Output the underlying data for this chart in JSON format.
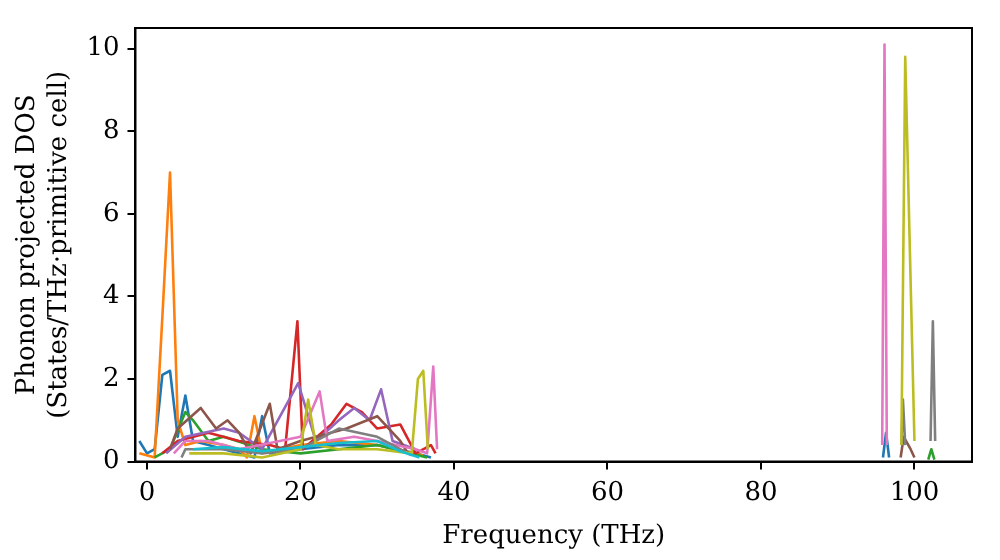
{
  "chart_data": {
    "type": "line",
    "xlabel": "Frequency (THz)",
    "ylabel": "Phonon projected DOS\n(States/THz·primitive cell)",
    "xlim": [
      -1.5,
      107.5
    ],
    "xticks": [
      0,
      20,
      40,
      60,
      80,
      100
    ],
    "ylim": [
      0,
      10.5
    ],
    "yticks": [
      0,
      2,
      4,
      6,
      8,
      10
    ],
    "grid": false,
    "legend": false,
    "series": [
      {
        "color": "#1f77b4",
        "x": [
          -1,
          0,
          1,
          2,
          3,
          4,
          5,
          6,
          8,
          10,
          14,
          15,
          16,
          20,
          25,
          30,
          35,
          37
        ],
        "values": [
          0.5,
          0.2,
          0.3,
          2.1,
          2.2,
          0.6,
          1.6,
          0.5,
          0.4,
          0.3,
          0.1,
          1.1,
          0.2,
          0.3,
          0.4,
          0.4,
          0.2,
          0.1
        ]
      },
      {
        "color": "#ff7f0e",
        "x": [
          -1,
          1,
          2,
          3,
          4,
          5,
          7,
          10,
          12,
          13,
          14,
          15,
          20,
          25,
          30,
          36
        ],
        "values": [
          0.2,
          0.1,
          3.5,
          7.0,
          1.0,
          0.4,
          0.5,
          0.4,
          0.3,
          0.1,
          1.1,
          0.2,
          0.4,
          0.5,
          0.4,
          0.15
        ]
      },
      {
        "color": "#2ca02c",
        "x": [
          1,
          3,
          5,
          6,
          8,
          10,
          15,
          20,
          25,
          30,
          36.5
        ],
        "values": [
          0.1,
          0.3,
          1.2,
          1.0,
          0.5,
          0.6,
          0.3,
          0.2,
          0.3,
          0.4,
          0.1
        ]
      },
      {
        "color": "#d62728",
        "x": [
          2,
          4,
          8,
          12,
          16,
          18,
          19.6,
          20.3,
          24,
          26,
          28,
          30,
          33,
          35,
          37,
          37.6
        ],
        "values": [
          0.2,
          0.5,
          0.7,
          0.5,
          0.4,
          0.3,
          3.4,
          0.3,
          0.9,
          1.4,
          1.2,
          0.8,
          0.9,
          0.2,
          0.4,
          0.2
        ]
      },
      {
        "color": "#9467bd",
        "x": [
          2.5,
          5,
          10,
          12,
          15,
          19.7,
          22,
          25,
          27,
          29,
          30.5,
          32,
          35
        ],
        "values": [
          0.2,
          0.6,
          0.8,
          0.7,
          0.3,
          1.9,
          0.5,
          1.0,
          1.3,
          1.0,
          1.75,
          0.5,
          0.3
        ]
      },
      {
        "color": "#8c564b",
        "x": [
          3,
          4,
          7,
          9,
          10.5,
          12,
          13.5,
          16,
          17,
          20,
          26,
          30,
          33,
          34
        ],
        "values": [
          0.3,
          0.8,
          1.3,
          0.8,
          1.0,
          0.7,
          0.2,
          1.4,
          0.3,
          0.5,
          0.8,
          1.1,
          0.5,
          0.2
        ]
      },
      {
        "color": "#e377c2",
        "x": [
          3.5,
          5,
          8,
          12,
          20,
          22.5,
          23.5,
          27,
          30,
          35,
          36.5,
          37.3,
          37.8
        ],
        "values": [
          0.2,
          0.5,
          0.5,
          0.3,
          0.6,
          1.7,
          0.5,
          0.6,
          0.5,
          0.3,
          0.2,
          2.3,
          0.3
        ]
      },
      {
        "color": "#7f7f7f",
        "x": [
          4.5,
          5,
          10,
          15,
          20,
          25,
          30,
          34.5
        ],
        "values": [
          0.1,
          0.3,
          0.3,
          0.2,
          0.3,
          0.8,
          0.6,
          0.15
        ]
      },
      {
        "color": "#bcbd22",
        "x": [
          5.5,
          10,
          15,
          20,
          21,
          22,
          25,
          30,
          34.5,
          35.3,
          36,
          36.6
        ],
        "values": [
          0.2,
          0.2,
          0.1,
          0.3,
          1.5,
          0.4,
          0.3,
          0.3,
          0.2,
          2.0,
          2.2,
          0.3
        ]
      },
      {
        "color": "#17becf",
        "x": [
          6,
          10,
          15,
          20,
          25,
          30,
          33,
          35.5
        ],
        "values": [
          0.3,
          0.35,
          0.25,
          0.35,
          0.45,
          0.5,
          0.25,
          0.1
        ]
      },
      {
        "color": "#1f77b4",
        "x": [
          95.9,
          96.3,
          96.7
        ],
        "values": [
          0.1,
          0.7,
          0.1
        ]
      },
      {
        "color": "#e377c2",
        "x": [
          95.8,
          96.1,
          96.4
        ],
        "values": [
          0.4,
          10.1,
          0.4
        ]
      },
      {
        "color": "#8c564b",
        "x": [
          98.2,
          98.6,
          99.5,
          100
        ],
        "values": [
          0.1,
          0.6,
          0.3,
          0.1
        ]
      },
      {
        "color": "#7f7f7f",
        "x": [
          98.3,
          98.5,
          98.8
        ],
        "values": [
          0.4,
          1.5,
          0.4
        ]
      },
      {
        "color": "#bcbd22",
        "x": [
          98.3,
          98.8,
          100
        ],
        "values": [
          0.4,
          9.8,
          0.5
        ]
      },
      {
        "color": "#7f7f7f",
        "x": [
          102.1,
          102.4,
          102.7
        ],
        "values": [
          0.5,
          3.4,
          0.5
        ]
      },
      {
        "color": "#2ca02c",
        "x": [
          101.8,
          102.2,
          102.6
        ],
        "values": [
          0.05,
          0.3,
          0.05
        ]
      }
    ]
  }
}
